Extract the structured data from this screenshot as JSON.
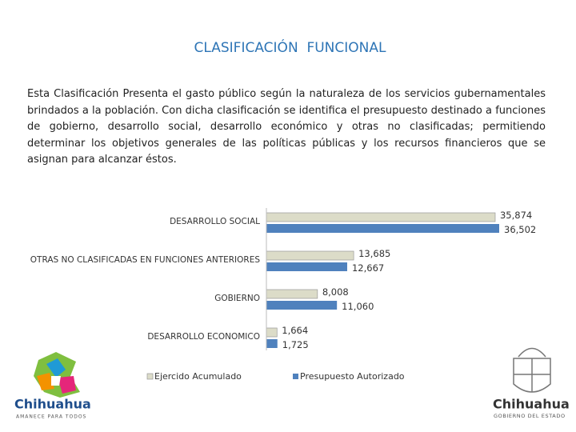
{
  "header": {
    "title": "CLASIFICACIÓN  FUNCIONAL"
  },
  "paragraph": "Esta Clasificación Presenta el gasto público según la naturaleza de los servicios gubernamentales brindados a la población. Con dicha clasificación se identifica el presupuesto destinado a funciones de gobierno, desarrollo social, desarrollo económico y otras no clasificadas; permitiendo determinar los objetivos generales de las políticas públicas y los recursos financieros que se asignan para alcanzar éstos.",
  "chart_data": {
    "type": "bar",
    "orientation": "horizontal",
    "categories": [
      "DESARROLLO SOCIAL",
      "OTRAS NO CLASIFICADAS EN FUNCIONES ANTERIORES",
      "GOBIERNO",
      "DESARROLLO ECONOMICO"
    ],
    "series": [
      {
        "name": "Ejercido Acumulado",
        "color": "#dcdcc8",
        "values": [
          35874,
          13685,
          8008,
          1664
        ],
        "value_labels": [
          "35,874",
          "13,685",
          "8,008",
          "1,664"
        ]
      },
      {
        "name": "Presupuesto Autorizado",
        "color": "#4f81bd",
        "values": [
          36502,
          12667,
          11060,
          1725
        ],
        "value_labels": [
          "36,502",
          "12,667",
          "11,060",
          "1,725"
        ]
      }
    ],
    "legend": "bottom"
  },
  "logos": {
    "left": {
      "name": "Chihuahua",
      "slogan": "AMANECE PARA TODOS"
    },
    "right": {
      "name": "Chihuahua",
      "subtitle": "GOBIERNO DEL ESTADO"
    }
  }
}
